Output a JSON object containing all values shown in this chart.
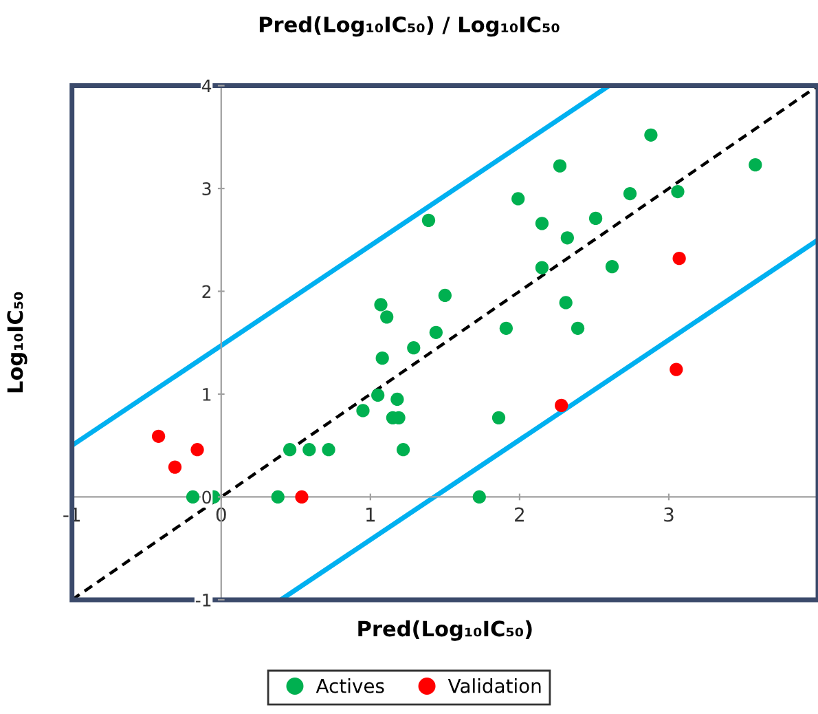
{
  "chart_data": {
    "type": "scatter",
    "title": "Pred(Log₁₀IC₅₀) / Log₁₀IC₅₀",
    "xlabel": "Pred(Log₁₀IC₅₀)",
    "ylabel": "Log₁₀IC₅₀",
    "xlim": [
      -1,
      4
    ],
    "ylim": [
      -1,
      4
    ],
    "xticks": [
      -1,
      0,
      1,
      2,
      3
    ],
    "yticks": [
      -1,
      0,
      1,
      2,
      3,
      4
    ],
    "grid": false,
    "legend": "bottom",
    "marker": "circle",
    "series": [
      {
        "type": "line",
        "color": "#00b0f0",
        "line_style": "solid",
        "marker": "none",
        "x": [
          -1,
          2.6
        ],
        "values": [
          0.5,
          4.0
        ]
      },
      {
        "type": "line",
        "color": "#00b0f0",
        "line_style": "solid",
        "marker": "none",
        "x": [
          0.4,
          4
        ],
        "values": [
          -1.0,
          2.5
        ]
      },
      {
        "type": "line",
        "color": "#000000",
        "line_style": "dashed",
        "marker": "none",
        "x": [
          -1,
          4
        ],
        "values": [
          -1,
          4
        ]
      },
      {
        "name": "Actives",
        "color": "#00b050",
        "x": [
          -0.19,
          -0.05,
          0.38,
          0.46,
          0.59,
          0.72,
          0.95,
          1.05,
          1.18,
          1.15,
          1.19,
          1.22,
          1.08,
          1.29,
          1.39,
          1.07,
          1.11,
          1.44,
          1.5,
          1.73,
          1.86,
          1.91,
          1.99,
          2.15,
          2.15,
          2.27,
          2.31,
          2.32,
          2.39,
          2.51,
          2.62,
          2.74,
          2.88,
          3.06,
          3.58
        ],
        "values": [
          0,
          0,
          0,
          0.46,
          0.46,
          0.46,
          0.84,
          0.99,
          0.95,
          0.77,
          0.77,
          0.46,
          1.35,
          1.45,
          2.69,
          1.87,
          1.75,
          1.6,
          1.96,
          0,
          0.77,
          1.64,
          2.9,
          2.66,
          2.23,
          3.22,
          1.89,
          2.52,
          1.64,
          2.71,
          2.24,
          2.95,
          3.52,
          2.97,
          3.23
        ]
      },
      {
        "name": "Validation",
        "color": "#ff0000",
        "x": [
          -0.42,
          -0.31,
          -0.16,
          0.54,
          2.28,
          3.05,
          3.07
        ],
        "values": [
          0.59,
          0.29,
          0.46,
          0,
          0.89,
          1.24,
          2.32
        ]
      }
    ]
  }
}
